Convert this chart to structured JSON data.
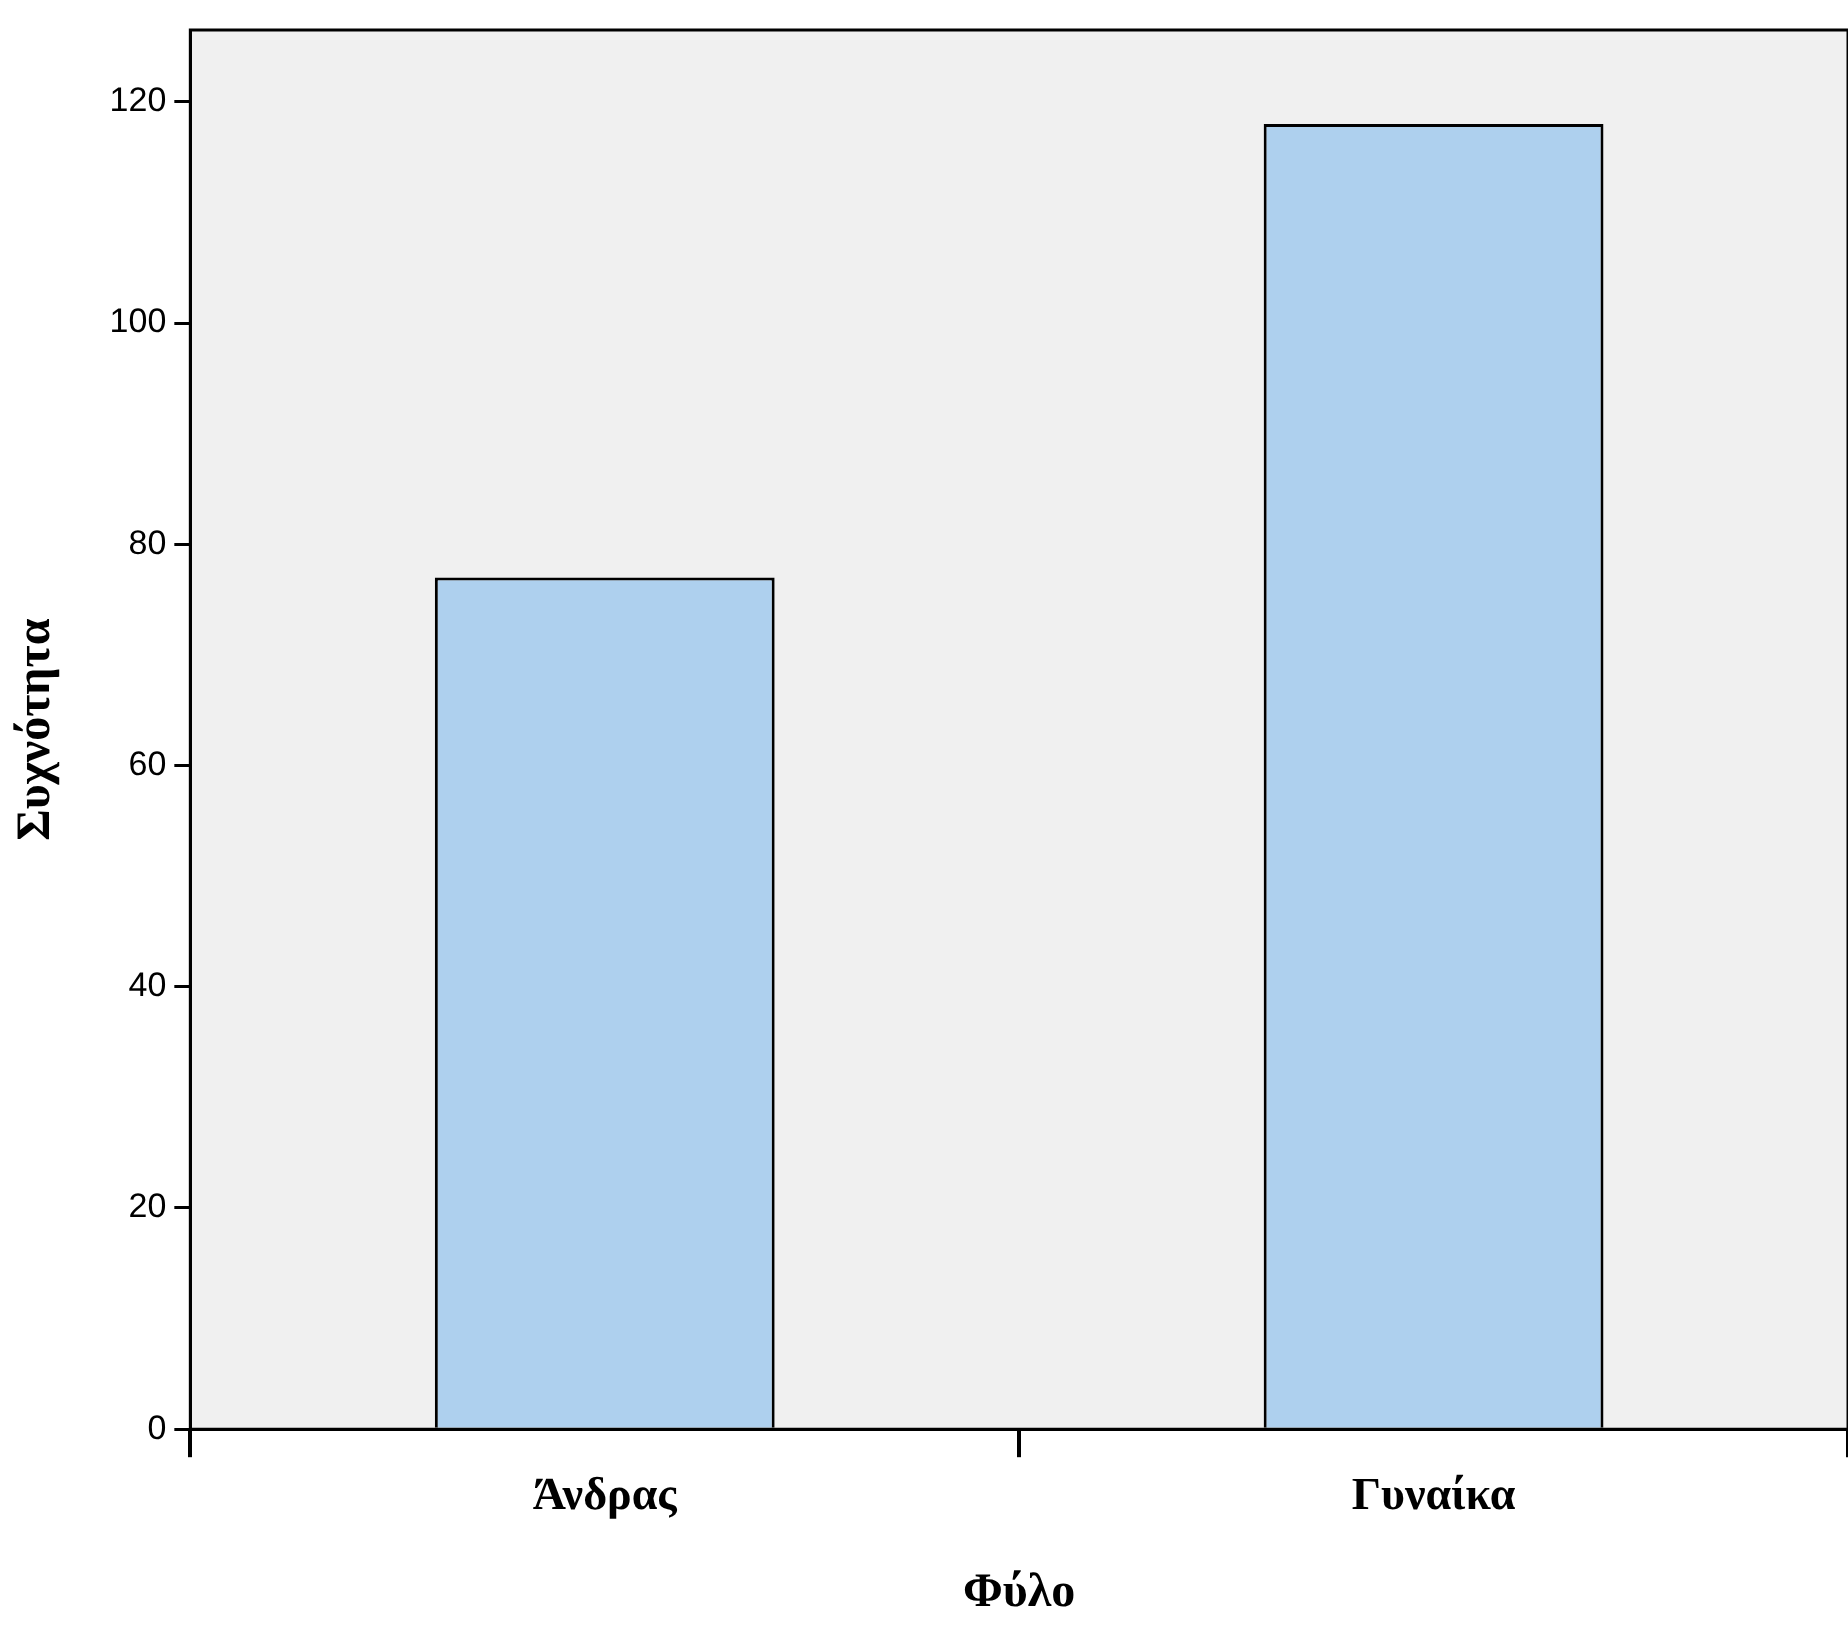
{
  "chart_data": {
    "type": "bar",
    "xlabel": "Φύλο",
    "ylabel": "Συχνότητα",
    "categories": [
      "Άνδρας",
      "Γυναίκα"
    ],
    "values": [
      77,
      118
    ],
    "color": "#aed0ee",
    "ylim": [
      0,
      126.5
    ],
    "yticks": [
      0,
      20,
      40,
      60,
      80,
      100,
      120
    ],
    "grid": false,
    "legend": false
  }
}
